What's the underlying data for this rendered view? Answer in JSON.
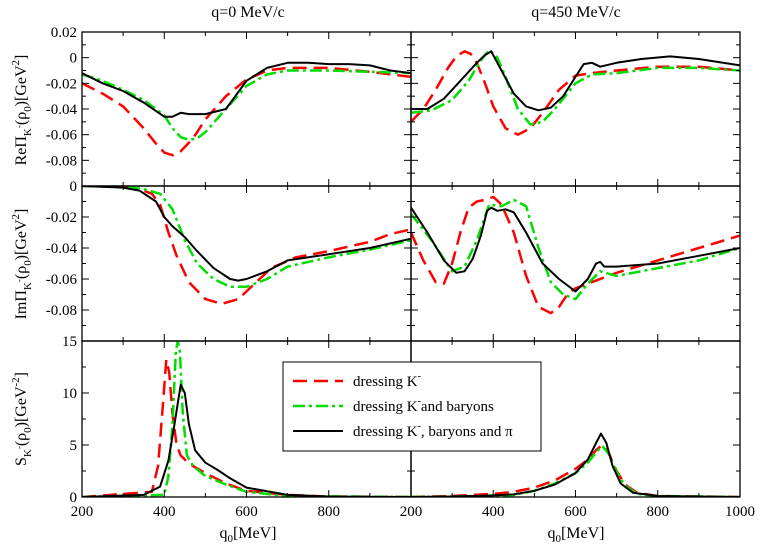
{
  "figure": {
    "column_titles": [
      "q=0 MeV/c",
      "q=450 MeV/c"
    ],
    "xlabel": "q",
    "xlabel_sub": "0",
    "xlabel_unit": "[MeV]"
  },
  "legend": {
    "entries": [
      {
        "main": "dressing K",
        "sup": "-",
        "rest": ""
      },
      {
        "main": "dressing K",
        "sup": "-",
        "rest": "and baryons"
      },
      {
        "main": "dressing K",
        "sup": "-",
        "rest": ", baryons and π"
      }
    ]
  },
  "colors": {
    "dressing_K": "#ff0000",
    "dressing_K_baryons": "#00dd00",
    "dressing_K_baryons_pi": "#000000"
  },
  "chart_data": [
    {
      "id": "re-q0",
      "type": "line",
      "row": 0,
      "col": 0,
      "xlim": [
        200,
        1000
      ],
      "ylim": [
        -0.1,
        0.02
      ],
      "yticks": [
        -0.08,
        -0.06,
        -0.04,
        -0.02,
        0,
        0.02
      ],
      "ytick_labels": [
        "-0.08",
        "-0.06",
        "-0.04",
        "-0.02",
        "0",
        "0.02"
      ],
      "ylabel": {
        "main": "ReΠ",
        "sub": "K",
        "subsup": "-",
        "arg": "(ρ",
        "argsub": "0",
        "unit": ")[GeV",
        "unitsup": "2",
        "end": "]"
      },
      "series": [
        {
          "name": "dressing K-",
          "style": "dashed",
          "x": [
            200,
            250,
            300,
            350,
            380,
            400,
            420,
            440,
            470,
            500,
            550,
            600,
            650,
            700,
            800,
            900,
            1000
          ],
          "y": [
            -0.02,
            -0.028,
            -0.038,
            -0.055,
            -0.067,
            -0.074,
            -0.076,
            -0.073,
            -0.063,
            -0.048,
            -0.03,
            -0.017,
            -0.01,
            -0.008,
            -0.008,
            -0.011,
            -0.015
          ]
        },
        {
          "name": "dressing K- and baryons",
          "style": "dashdot",
          "x": [
            200,
            250,
            300,
            350,
            400,
            420,
            440,
            460,
            480,
            500,
            550,
            600,
            650,
            700,
            800,
            900,
            1000
          ],
          "y": [
            -0.013,
            -0.018,
            -0.025,
            -0.033,
            -0.045,
            -0.055,
            -0.062,
            -0.064,
            -0.063,
            -0.058,
            -0.04,
            -0.022,
            -0.013,
            -0.01,
            -0.01,
            -0.011,
            -0.012
          ]
        },
        {
          "name": "dressing K-, baryons and π",
          "style": "solid",
          "x": [
            200,
            250,
            300,
            350,
            400,
            420,
            440,
            460,
            500,
            550,
            600,
            650,
            700,
            750,
            800,
            850,
            900,
            950,
            1000
          ],
          "y": [
            -0.012,
            -0.02,
            -0.026,
            -0.035,
            -0.046,
            -0.046,
            -0.043,
            -0.044,
            -0.044,
            -0.04,
            -0.018,
            -0.008,
            -0.004,
            -0.004,
            -0.005,
            -0.005,
            -0.006,
            -0.01,
            -0.012
          ]
        }
      ]
    },
    {
      "id": "re-q450",
      "type": "line",
      "row": 0,
      "col": 1,
      "xlim": [
        200,
        1000
      ],
      "ylim": [
        -0.1,
        0.02
      ],
      "yticks": [
        -0.08,
        -0.06,
        -0.04,
        -0.02,
        0,
        0.02
      ],
      "series": [
        {
          "name": "dressing K-",
          "style": "dashed",
          "x": [
            200,
            230,
            260,
            290,
            310,
            330,
            345,
            360,
            380,
            400,
            430,
            460,
            490,
            520,
            560,
            600,
            640,
            700,
            800,
            900,
            1000
          ],
          "y": [
            -0.05,
            -0.04,
            -0.025,
            -0.008,
            0.001,
            0.005,
            0.003,
            -0.004,
            -0.02,
            -0.038,
            -0.055,
            -0.06,
            -0.055,
            -0.043,
            -0.025,
            -0.014,
            -0.012,
            -0.01,
            -0.007,
            -0.007,
            -0.01
          ]
        },
        {
          "name": "dressing K- and baryons",
          "style": "dashdot",
          "x": [
            200,
            250,
            300,
            340,
            370,
            390,
            410,
            430,
            460,
            490,
            520,
            550,
            600,
            640,
            700,
            800,
            900,
            1000
          ],
          "y": [
            -0.043,
            -0.041,
            -0.033,
            -0.018,
            -0.002,
            0.006,
            0.0,
            -0.015,
            -0.04,
            -0.052,
            -0.05,
            -0.04,
            -0.02,
            -0.013,
            -0.012,
            -0.008,
            -0.008,
            -0.01
          ]
        },
        {
          "name": "dressing K-, baryons and π",
          "style": "solid",
          "x": [
            200,
            240,
            280,
            320,
            360,
            380,
            395,
            420,
            450,
            480,
            510,
            540,
            570,
            600,
            620,
            640,
            660,
            700,
            760,
            830,
            900,
            1000
          ],
          "y": [
            -0.04,
            -0.04,
            -0.032,
            -0.018,
            -0.004,
            0.002,
            0.005,
            -0.01,
            -0.028,
            -0.038,
            -0.041,
            -0.039,
            -0.03,
            -0.015,
            -0.005,
            -0.004,
            -0.007,
            -0.004,
            -0.001,
            0.001,
            -0.001,
            -0.006
          ]
        }
      ]
    },
    {
      "id": "im-q0",
      "type": "line",
      "row": 1,
      "col": 0,
      "xlim": [
        200,
        1000
      ],
      "ylim": [
        -0.1,
        0
      ],
      "yticks": [
        -0.08,
        -0.06,
        -0.04,
        -0.02,
        0
      ],
      "ytick_labels": [
        "-0.08",
        "-0.06",
        "-0.04",
        "-0.02",
        "0"
      ],
      "ylabel": {
        "main": "ImΠ",
        "sub": "K",
        "subsup": "-",
        "arg": "(ρ",
        "argsub": "0",
        "unit": ")[GeV",
        "unitsup": "2",
        "end": "]"
      },
      "series": [
        {
          "name": "dressing K-",
          "style": "dashed",
          "x": [
            200,
            300,
            340,
            370,
            390,
            410,
            430,
            460,
            500,
            540,
            580,
            620,
            660,
            720,
            800,
            900,
            950,
            1000
          ],
          "y": [
            0,
            -0.0005,
            -0.002,
            -0.005,
            -0.012,
            -0.03,
            -0.045,
            -0.062,
            -0.073,
            -0.076,
            -0.073,
            -0.063,
            -0.053,
            -0.046,
            -0.042,
            -0.036,
            -0.031,
            -0.028
          ]
        },
        {
          "name": "dressing K- and baryons",
          "style": "dashdot",
          "x": [
            200,
            300,
            350,
            390,
            420,
            450,
            480,
            520,
            560,
            600,
            650,
            700,
            800,
            900,
            1000
          ],
          "y": [
            0,
            -0.0005,
            -0.002,
            -0.005,
            -0.015,
            -0.035,
            -0.05,
            -0.06,
            -0.065,
            -0.065,
            -0.06,
            -0.052,
            -0.046,
            -0.041,
            -0.035
          ]
        },
        {
          "name": "dressing K-, baryons and π",
          "style": "solid",
          "x": [
            200,
            300,
            340,
            380,
            400,
            420,
            450,
            480,
            520,
            560,
            580,
            600,
            650,
            700,
            800,
            900,
            1000
          ],
          "y": [
            0,
            -0.001,
            -0.003,
            -0.01,
            -0.02,
            -0.026,
            -0.033,
            -0.042,
            -0.053,
            -0.06,
            -0.061,
            -0.06,
            -0.055,
            -0.048,
            -0.044,
            -0.04,
            -0.034
          ]
        }
      ]
    },
    {
      "id": "im-q450",
      "type": "line",
      "row": 1,
      "col": 1,
      "xlim": [
        200,
        1000
      ],
      "ylim": [
        -0.1,
        0
      ],
      "yticks": [
        -0.08,
        -0.06,
        -0.04,
        -0.02,
        0
      ],
      "series": [
        {
          "name": "dressing K-",
          "style": "dashed",
          "x": [
            200,
            230,
            260,
            280,
            300,
            320,
            340,
            360,
            380,
            400,
            420,
            450,
            480,
            510,
            540,
            560,
            580,
            600,
            640,
            700,
            800,
            900,
            1000
          ],
          "y": [
            -0.03,
            -0.048,
            -0.062,
            -0.063,
            -0.05,
            -0.03,
            -0.014,
            -0.01,
            -0.009,
            -0.007,
            -0.012,
            -0.03,
            -0.058,
            -0.078,
            -0.082,
            -0.078,
            -0.07,
            -0.066,
            -0.062,
            -0.056,
            -0.048,
            -0.04,
            -0.032
          ]
        },
        {
          "name": "dressing K- and baryons",
          "style": "dashdot",
          "x": [
            200,
            250,
            300,
            330,
            360,
            390,
            420,
            450,
            480,
            510,
            540,
            570,
            600,
            630,
            660,
            700,
            800,
            900,
            1000
          ],
          "y": [
            -0.018,
            -0.035,
            -0.055,
            -0.052,
            -0.035,
            -0.012,
            -0.013,
            -0.009,
            -0.013,
            -0.04,
            -0.062,
            -0.07,
            -0.073,
            -0.063,
            -0.055,
            -0.058,
            -0.053,
            -0.048,
            -0.04
          ]
        },
        {
          "name": "dressing K-, baryons and π",
          "style": "solid",
          "x": [
            200,
            240,
            280,
            310,
            330,
            350,
            370,
            385,
            395,
            410,
            430,
            450,
            480,
            520,
            560,
            600,
            630,
            650,
            660,
            670,
            700,
            800,
            900,
            1000
          ],
          "y": [
            -0.014,
            -0.03,
            -0.048,
            -0.056,
            -0.055,
            -0.047,
            -0.032,
            -0.016,
            -0.014,
            -0.016,
            -0.015,
            -0.017,
            -0.03,
            -0.05,
            -0.06,
            -0.068,
            -0.06,
            -0.05,
            -0.049,
            -0.052,
            -0.052,
            -0.05,
            -0.045,
            -0.04
          ]
        }
      ]
    },
    {
      "id": "spec-q0",
      "type": "line",
      "row": 2,
      "col": 0,
      "xlim": [
        200,
        1000
      ],
      "ylim": [
        0,
        15
      ],
      "yticks": [
        0,
        5,
        10,
        15
      ],
      "ytick_labels": [
        "0",
        "5",
        "10",
        "15"
      ],
      "xticks": [
        200,
        400,
        600,
        800
      ],
      "xtick_labels": [
        "200",
        "400",
        "600",
        "800"
      ],
      "ylabel": {
        "main": "S",
        "sub": "K",
        "subsup": "-",
        "arg": "(ρ",
        "argsub": "0",
        "unit": ")[GeV",
        "unitsup": "-2",
        "end": "]"
      },
      "series": [
        {
          "name": "dressing K-",
          "style": "dashed",
          "x": [
            200,
            370,
            385,
            395,
            405,
            412,
            420,
            430,
            440,
            460,
            500,
            550,
            600,
            700,
            800,
            1000
          ],
          "y": [
            0,
            0.5,
            3,
            8,
            13.2,
            12,
            8,
            5,
            4,
            3.2,
            2.3,
            1.3,
            0.6,
            0.2,
            0.05,
            0
          ]
        },
        {
          "name": "dressing K- and baryons",
          "style": "dashdot",
          "x": [
            200,
            400,
            410,
            420,
            428,
            433,
            438,
            445,
            455,
            470,
            500,
            550,
            600,
            700,
            1000
          ],
          "y": [
            0,
            0.2,
            2,
            7,
            14,
            15,
            14,
            8,
            4,
            3,
            2,
            1.2,
            0.5,
            0.1,
            0
          ]
        },
        {
          "name": "dressing K-, baryons and π",
          "style": "solid",
          "x": [
            200,
            350,
            390,
            410,
            425,
            440,
            450,
            460,
            475,
            500,
            530,
            560,
            600,
            700,
            800,
            1000
          ],
          "y": [
            0,
            0.2,
            1,
            3.5,
            7,
            10.8,
            10,
            7,
            4.5,
            3.3,
            2.6,
            1.8,
            0.9,
            0.2,
            0.05,
            0
          ]
        }
      ]
    },
    {
      "id": "spec-q450",
      "type": "line",
      "row": 2,
      "col": 1,
      "xlim": [
        200,
        1000
      ],
      "ylim": [
        0,
        15
      ],
      "yticks": [
        0,
        5,
        10,
        15
      ],
      "xticks": [
        200,
        400,
        600,
        800,
        1000
      ],
      "xtick_labels": [
        "200",
        "400",
        "600",
        "800",
        "1000"
      ],
      "series": [
        {
          "name": "dressing K-",
          "style": "dashed",
          "x": [
            200,
            300,
            400,
            450,
            500,
            550,
            600,
            630,
            650,
            665,
            680,
            700,
            720,
            750,
            800,
            1000
          ],
          "y": [
            0,
            0.1,
            0.3,
            0.5,
            0.9,
            1.6,
            2.7,
            3.6,
            4.5,
            5,
            4.3,
            2.5,
            1.2,
            0.4,
            0.1,
            0
          ]
        },
        {
          "name": "dressing K- and baryons",
          "style": "dashdot",
          "x": [
            200,
            300,
            400,
            450,
            500,
            550,
            600,
            630,
            650,
            665,
            680,
            700,
            720,
            750,
            800,
            1000
          ],
          "y": [
            0,
            0.05,
            0.1,
            0.2,
            0.6,
            1.3,
            2.3,
            3.3,
            4.3,
            4.9,
            4.2,
            2.4,
            1.1,
            0.3,
            0.1,
            0
          ]
        },
        {
          "name": "dressing K-, baryons and π",
          "style": "solid",
          "x": [
            200,
            300,
            400,
            450,
            500,
            550,
            600,
            630,
            650,
            662,
            675,
            690,
            710,
            740,
            800,
            1000
          ],
          "y": [
            0,
            0.05,
            0.15,
            0.25,
            0.6,
            1.2,
            2.3,
            3.6,
            5.2,
            6.1,
            5.2,
            3.0,
            1.3,
            0.4,
            0.1,
            0
          ]
        }
      ]
    }
  ]
}
